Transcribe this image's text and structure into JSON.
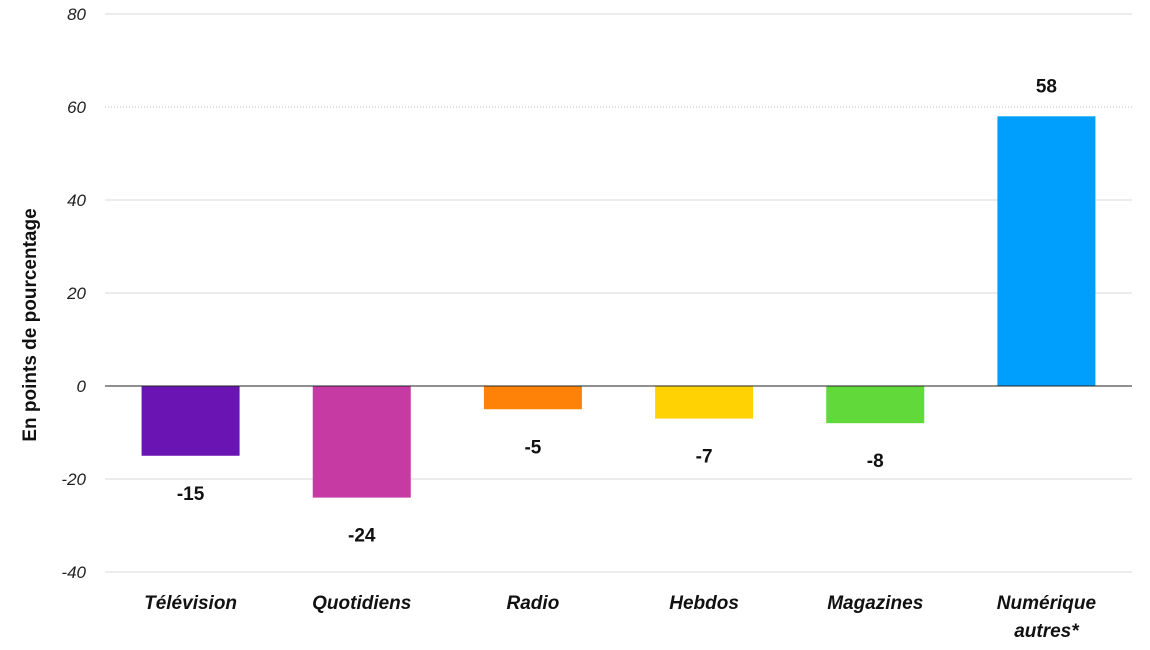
{
  "chart_data": {
    "type": "bar",
    "ylabel": "En points de pourcentage",
    "ylim": [
      -40,
      80
    ],
    "yticks": [
      80,
      60,
      40,
      20,
      0,
      -20,
      -40
    ],
    "grid": true,
    "categories": [
      {
        "lines": [
          "Télévision"
        ]
      },
      {
        "lines": [
          "Quotidiens"
        ]
      },
      {
        "lines": [
          "Radio"
        ]
      },
      {
        "lines": [
          "Hebdos"
        ]
      },
      {
        "lines": [
          "Magazines"
        ]
      },
      {
        "lines": [
          "Numérique",
          "autres*"
        ]
      }
    ],
    "values": [
      -15,
      -24,
      -5,
      -7,
      -8,
      58
    ],
    "data_labels": [
      "-15",
      "-24",
      "-5",
      "-7",
      "-8",
      "58"
    ],
    "colors": [
      "#6a14b4",
      "#c63aa3",
      "#ff8208",
      "#ffd203",
      "#62d93a",
      "#009ffd"
    ]
  }
}
